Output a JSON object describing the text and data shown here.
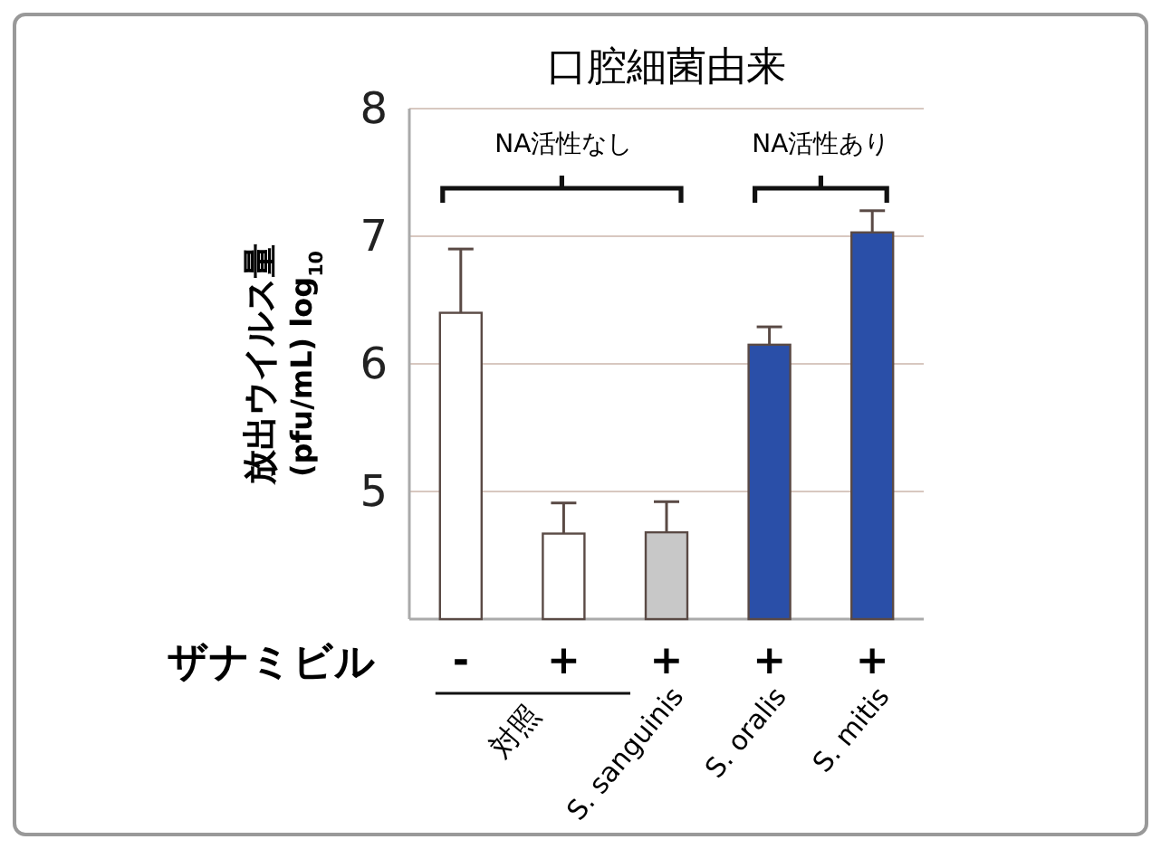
{
  "chart_data": {
    "type": "bar",
    "title": "口腔細菌由来",
    "ylabel": "放出ウイルス量\n(pfu/mL) log$_{10}$",
    "categories": [
      "-",
      "+",
      "+",
      "+",
      "+"
    ],
    "values": [
      6.4,
      4.67,
      4.68,
      6.15,
      7.03
    ],
    "errors": [
      [
        6.4,
        6.9
      ],
      [
        4.67,
        4.91
      ],
      [
        4.68,
        4.92
      ],
      [
        6.15,
        6.29
      ],
      [
        7.03,
        7.2
      ]
    ],
    "colors": [
      "#ffffff",
      "#ffffff",
      "#c8c8c8",
      "#2a4fa8",
      "#2a4fa8"
    ],
    "ylim": [
      4,
      8
    ],
    "yticks": [
      5,
      6,
      7,
      8
    ],
    "grid": "y",
    "annotations": [
      "ザナミビル",
      "NA活性なし",
      "NA活性あり",
      "対照",
      "S. sanguinis",
      "S. oralis",
      "S. mitis"
    ]
  }
}
